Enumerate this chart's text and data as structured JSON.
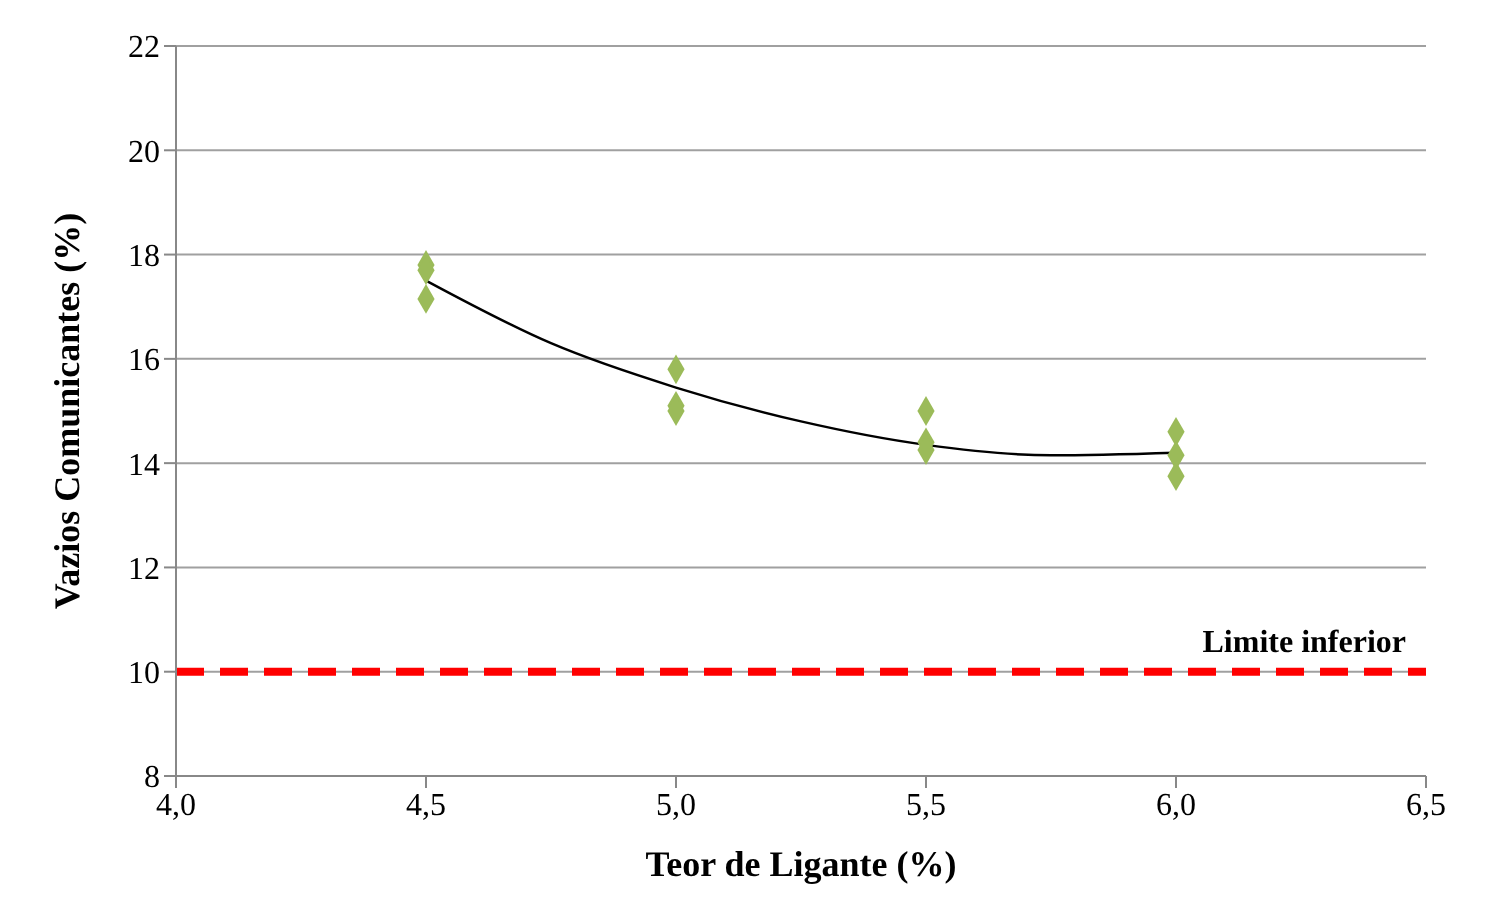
{
  "chart_data": {
    "type": "scatter",
    "xlabel": "Teor de Ligante (%)",
    "ylabel": "Vazios Comunicantes (%)",
    "xlim": [
      4.0,
      6.5
    ],
    "xticks": [
      {
        "value": 4.0,
        "label": "4,0"
      },
      {
        "value": 4.5,
        "label": "4,5"
      },
      {
        "value": 5.0,
        "label": "5,0"
      },
      {
        "value": 5.5,
        "label": "5,5"
      },
      {
        "value": 6.0,
        "label": "6,0"
      },
      {
        "value": 6.5,
        "label": "6,5"
      }
    ],
    "ylim": [
      8,
      22
    ],
    "yticks": [
      8,
      10,
      12,
      14,
      16,
      18,
      20,
      22
    ],
    "grid": "y",
    "series": [
      {
        "marker": "diamond",
        "color": "#9bbb59",
        "x": [
          4.5,
          4.5,
          4.5,
          5.0,
          5.0,
          5.0,
          5.5,
          5.5,
          5.5,
          6.0,
          6.0,
          6.0
        ],
        "values": [
          17.8,
          17.7,
          17.15,
          15.8,
          15.1,
          15.0,
          15.0,
          14.4,
          14.25,
          14.6,
          14.15,
          13.75
        ]
      },
      {
        "type": "line",
        "marker": "none",
        "color": "#000000",
        "x": [
          4.5,
          4.75,
          5.0,
          5.25,
          5.5,
          5.75,
          6.0
        ],
        "values": [
          17.5,
          16.3,
          15.45,
          14.8,
          14.35,
          14.15,
          14.2
        ]
      }
    ],
    "ref_lines": [
      {
        "axis": "y",
        "value": 10,
        "label": "Limite inferior",
        "color": "#ff0000",
        "line_style": "dashed"
      }
    ]
  }
}
